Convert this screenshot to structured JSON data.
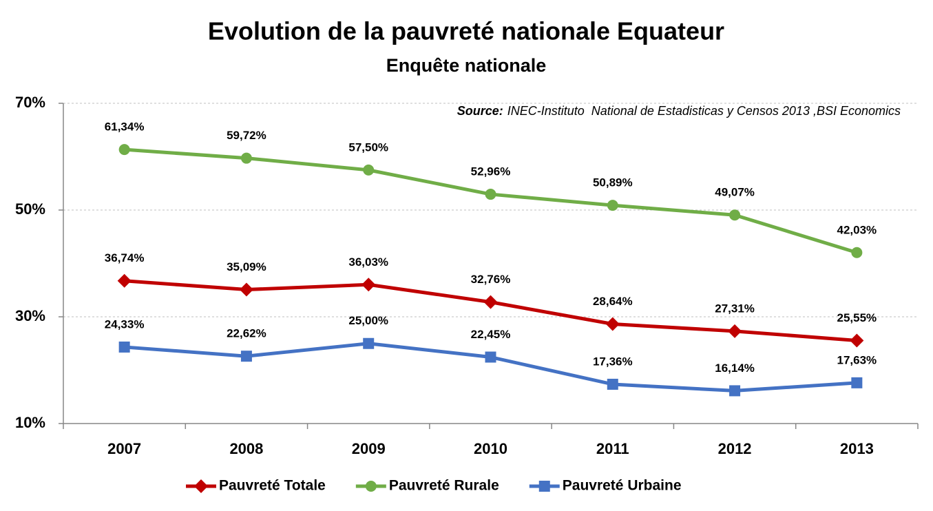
{
  "chart_data": {
    "type": "line",
    "title": "Evolution de la pauvreté nationale Equateur",
    "subtitle": "Enquête nationale",
    "annotation": {
      "label": "Source:",
      "text": "INEC-Instituto  National de Estadisticas y Censos 2013 ,BSI Economics"
    },
    "categories": [
      "2007",
      "2008",
      "2009",
      "2010",
      "2011",
      "2012",
      "2013"
    ],
    "series": [
      {
        "name": "Pauvreté Totale",
        "color": "#c00000",
        "marker": "diamond",
        "values": [
          36.74,
          35.09,
          36.03,
          32.76,
          28.64,
          27.31,
          25.55
        ],
        "value_labels": [
          "36,74%",
          "35,09%",
          "36,03%",
          "32,76%",
          "28,64%",
          "27,31%",
          "25,55%"
        ]
      },
      {
        "name": "Pauvreté Rurale",
        "color": "#70ad47",
        "marker": "circle",
        "values": [
          61.34,
          59.72,
          57.5,
          52.96,
          50.89,
          49.07,
          42.03
        ],
        "value_labels": [
          "61,34%",
          "59,72%",
          "57,50%",
          "52,96%",
          "50,89%",
          "49,07%",
          "42,03%"
        ]
      },
      {
        "name": "Pauvreté Urbaine",
        "color": "#4472c4",
        "marker": "square",
        "values": [
          24.33,
          22.62,
          25.0,
          22.45,
          17.36,
          16.14,
          17.63
        ],
        "value_labels": [
          "24,33%",
          "22,62%",
          "25,00%",
          "22,45%",
          "17,36%",
          "16,14%",
          "17,63%"
        ]
      }
    ],
    "ylim": [
      10,
      70
    ],
    "yticks": [
      {
        "value": 10,
        "label": "10%"
      },
      {
        "value": 30,
        "label": "30%"
      },
      {
        "value": 50,
        "label": "50%"
      },
      {
        "value": 70,
        "label": "70%"
      }
    ],
    "grid": true,
    "legend": "bottom"
  }
}
